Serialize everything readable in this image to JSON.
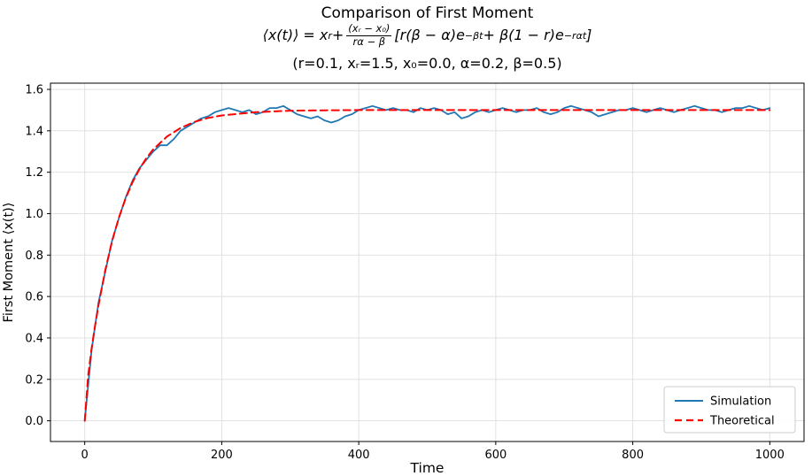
{
  "chart_data": {
    "type": "line",
    "title": "Comparison of First Moment",
    "subtitle_formula_plain": "⟨x(t)⟩ = xᵣ + ((xᵣ − x₀)/(rα − β))[r(β − α)e^(−βt) + β(1 − r)e^(−rαt)]",
    "formula_segments": [
      {
        "t": "⟨x(t)⟩ = x"
      },
      {
        "sub": "r"
      },
      {
        "t": " + "
      },
      {
        "frac": {
          "num": "(xᵣ − x₀)",
          "den": "rα − β"
        }
      },
      {
        "t": "[r(β − α)e"
      },
      {
        "sup": "−βt"
      },
      {
        "t": " + β(1 − r)e"
      },
      {
        "sup": "−rαt"
      },
      {
        "t": "]"
      }
    ],
    "params_line": "(r=0.1, xᵣ=1.5, x₀=0.0, α=0.2, β=0.5)",
    "parameters": {
      "r": 0.1,
      "x_r": 1.5,
      "x_0": 0.0,
      "alpha": 0.2,
      "beta": 0.5
    },
    "xlabel": "Time",
    "ylabel": "First Moment ⟨x(t)⟩",
    "xlim": [
      -50,
      1050
    ],
    "ylim": [
      -0.1,
      1.63
    ],
    "xticks": [
      0,
      200,
      400,
      600,
      800,
      1000
    ],
    "yticks": [
      0.0,
      0.2,
      0.4,
      0.6,
      0.8,
      1.0,
      1.2,
      1.4,
      1.6
    ],
    "grid": true,
    "legend": {
      "position": "lower right",
      "entries": [
        "Simulation",
        "Theoretical"
      ]
    },
    "series": [
      {
        "name": "Simulation",
        "color": "#1f77b4",
        "style": "solid",
        "width": 1.8,
        "x": [
          0,
          10,
          20,
          30,
          40,
          50,
          60,
          70,
          80,
          90,
          100,
          110,
          120,
          130,
          140,
          150,
          160,
          170,
          180,
          190,
          200,
          210,
          220,
          230,
          240,
          250,
          260,
          270,
          280,
          290,
          300,
          310,
          320,
          330,
          340,
          350,
          360,
          370,
          380,
          390,
          400,
          410,
          420,
          430,
          440,
          450,
          460,
          470,
          480,
          490,
          500,
          510,
          520,
          530,
          540,
          550,
          560,
          570,
          580,
          590,
          600,
          610,
          620,
          630,
          640,
          650,
          660,
          670,
          680,
          690,
          700,
          710,
          720,
          730,
          740,
          750,
          760,
          770,
          780,
          790,
          800,
          810,
          820,
          830,
          840,
          850,
          860,
          870,
          880,
          890,
          900,
          910,
          920,
          930,
          940,
          950,
          960,
          970,
          980,
          990,
          1000
        ],
        "y": [
          0.0,
          0.34,
          0.57,
          0.72,
          0.87,
          0.98,
          1.08,
          1.16,
          1.22,
          1.26,
          1.3,
          1.33,
          1.33,
          1.36,
          1.4,
          1.42,
          1.44,
          1.46,
          1.47,
          1.49,
          1.5,
          1.51,
          1.5,
          1.49,
          1.5,
          1.48,
          1.49,
          1.51,
          1.51,
          1.52,
          1.5,
          1.48,
          1.47,
          1.46,
          1.47,
          1.45,
          1.44,
          1.45,
          1.47,
          1.48,
          1.5,
          1.51,
          1.52,
          1.51,
          1.5,
          1.51,
          1.5,
          1.5,
          1.49,
          1.51,
          1.5,
          1.51,
          1.5,
          1.48,
          1.49,
          1.46,
          1.47,
          1.49,
          1.5,
          1.49,
          1.5,
          1.51,
          1.5,
          1.49,
          1.5,
          1.5,
          1.51,
          1.49,
          1.48,
          1.49,
          1.51,
          1.52,
          1.51,
          1.5,
          1.49,
          1.47,
          1.48,
          1.49,
          1.5,
          1.5,
          1.51,
          1.5,
          1.49,
          1.5,
          1.51,
          1.5,
          1.49,
          1.5,
          1.51,
          1.52,
          1.51,
          1.5,
          1.5,
          1.49,
          1.5,
          1.51,
          1.51,
          1.52,
          1.51,
          1.5,
          1.51
        ]
      },
      {
        "name": "Theoretical",
        "color": "#ff0000",
        "style": "dashed",
        "width": 2,
        "x": [
          0,
          5,
          10,
          15,
          20,
          30,
          40,
          50,
          60,
          70,
          80,
          90,
          100,
          120,
          140,
          160,
          180,
          200,
          250,
          300,
          350,
          400,
          500,
          600,
          700,
          800,
          900,
          1000
        ],
        "y": [
          0.0,
          0.22,
          0.348,
          0.458,
          0.557,
          0.728,
          0.868,
          0.983,
          1.076,
          1.153,
          1.216,
          1.268,
          1.31,
          1.372,
          1.414,
          1.443,
          1.462,
          1.474,
          1.49,
          1.497,
          1.499,
          1.5,
          1.5,
          1.5,
          1.5,
          1.5,
          1.5,
          1.5
        ]
      }
    ]
  }
}
